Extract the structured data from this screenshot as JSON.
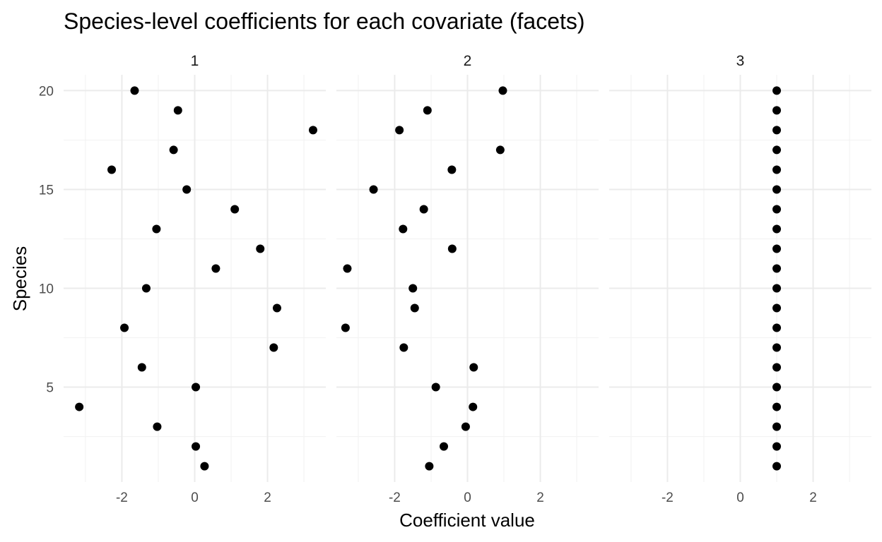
{
  "chart_data": {
    "type": "scatter",
    "title": "Species-level coefficients for each covariate (facets)",
    "xlabel": "Coefficient value",
    "ylabel": "Species",
    "xlim": [
      -3.6,
      3.6
    ],
    "ylim": [
      0.2,
      20.8
    ],
    "x_ticks": [
      -2,
      0,
      2
    ],
    "y_ticks": [
      5,
      10,
      15,
      20
    ],
    "grid": true,
    "facets": [
      {
        "label": "1",
        "x": [
          0.27,
          0.03,
          -1.03,
          -3.17,
          0.03,
          -1.45,
          2.17,
          -1.93,
          2.26,
          -1.33,
          0.58,
          1.8,
          -1.05,
          1.1,
          -0.22,
          -2.28,
          -0.58,
          3.25,
          -0.46,
          -1.65
        ],
        "y": [
          1,
          2,
          3,
          4,
          5,
          6,
          7,
          8,
          9,
          10,
          11,
          12,
          13,
          14,
          15,
          16,
          17,
          18,
          19,
          20
        ]
      },
      {
        "label": "2",
        "x": [
          -1.05,
          -0.65,
          -0.05,
          0.15,
          -0.87,
          0.17,
          -1.75,
          -3.35,
          -1.45,
          -1.5,
          -3.3,
          -0.42,
          -1.77,
          -1.2,
          -2.58,
          -0.43,
          0.9,
          -1.87,
          -1.1,
          0.97
        ],
        "y": [
          1,
          2,
          3,
          4,
          5,
          6,
          7,
          8,
          9,
          10,
          11,
          12,
          13,
          14,
          15,
          16,
          17,
          18,
          19,
          20
        ]
      },
      {
        "label": "3",
        "x": [
          1,
          1,
          1,
          1,
          1,
          1,
          1,
          1,
          1,
          1,
          1,
          1,
          1,
          1,
          1,
          1,
          1,
          1,
          1,
          1
        ],
        "y": [
          1,
          2,
          3,
          4,
          5,
          6,
          7,
          8,
          9,
          10,
          11,
          12,
          13,
          14,
          15,
          16,
          17,
          18,
          19,
          20
        ]
      }
    ]
  }
}
